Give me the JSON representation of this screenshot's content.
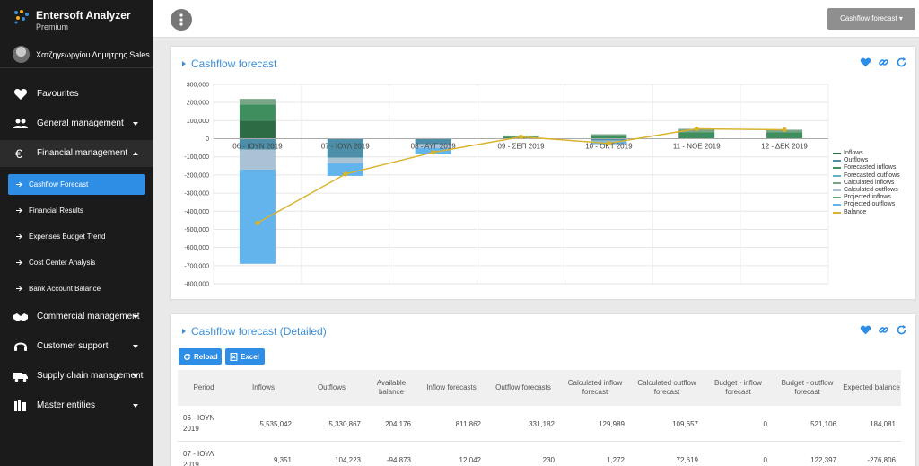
{
  "app": {
    "title": "Entersoft Analyzer",
    "subtitle": "Premium"
  },
  "user": {
    "name": "Χατζηγεωργίου Δημήτρης Sales"
  },
  "nav": {
    "favourites": "Favourites",
    "general": "General management",
    "financial": "Financial management",
    "commercial": "Commercial management",
    "support": "Customer support",
    "supply": "Supply chain management",
    "master": "Master entities",
    "sub": [
      "Cashflow Forecast",
      "Financial Results",
      "Expenses Budget Trend",
      "Cost Center Analysis",
      "Bank Account Balance"
    ]
  },
  "topbar": {
    "button": "Cashflow forecast"
  },
  "panel1": {
    "title": "Cashflow forecast"
  },
  "panel2": {
    "title": "Cashflow forecast (Detailed)",
    "reload": "Reload",
    "excel": "Excel"
  },
  "colors": {
    "accent": "#2e8ee6",
    "inflow": "#3f8f5e",
    "outflow": "#2e8ee6",
    "balance": "#d9b32b"
  },
  "chart_data": {
    "type": "bar",
    "title": "Cashflow forecast",
    "categories": [
      "06 - ΙΟΥΝ 2019",
      "07 - ΙΟΥΛ 2019",
      "08 - ΑΥΓ 2019",
      "09 - ΣΕΠ 2019",
      "10 - ΟΚΤ 2019",
      "11 - ΝΟΕ 2019",
      "12 - ΔΕΚ 2019"
    ],
    "ylim": [
      -800000,
      300000
    ],
    "yticks": [
      "300,000",
      "200,000",
      "100,000",
      "0",
      "-100,000",
      "-200,000",
      "-300,000",
      "-400,000",
      "-500,000",
      "-600,000",
      "-700,000",
      "-800,000"
    ],
    "ytick_values": [
      300000,
      200000,
      100000,
      0,
      -100000,
      -200000,
      -300000,
      -400000,
      -500000,
      -600000,
      -700000,
      -800000
    ],
    "legend": [
      "Inflows",
      "Outflows",
      "Forecasted inflows",
      "Forecasted outflows",
      "Calculated inflows",
      "Calculated outflows",
      "Projected inflows",
      "Projected outflows",
      "Balance"
    ],
    "legend_colors": [
      "#2d6b45",
      "#4d8ea8",
      "#3f8f5e",
      "#5eb2c4",
      "#7aa688",
      "#a9c3d4",
      "#5aa977",
      "#63b3ec",
      "#d9b32b"
    ],
    "series": [
      {
        "name": "Inflows",
        "values": [
          100000,
          0,
          0,
          0,
          0,
          0,
          0
        ]
      },
      {
        "name": "Forecasted inflows",
        "values": [
          90000,
          0,
          0,
          10000,
          15000,
          35000,
          35000
        ]
      },
      {
        "name": "Calculated inflows",
        "values": [
          30000,
          2000,
          3000,
          8000,
          10000,
          20000,
          15000
        ]
      },
      {
        "name": "Outflows",
        "values": [
          -60000,
          -105000,
          -30000,
          0,
          -10000,
          0,
          0
        ]
      },
      {
        "name": "Calculated outflows",
        "values": [
          -110000,
          -30000,
          -20000,
          0,
          -5000,
          0,
          0
        ]
      },
      {
        "name": "Projected outflows",
        "values": [
          -520000,
          -70000,
          -35000,
          0,
          -15000,
          0,
          0
        ]
      }
    ],
    "balance": [
      -465000,
      -195000,
      -75000,
      10000,
      -25000,
      55000,
      50000
    ]
  },
  "table": {
    "headers": [
      "Period",
      "Inflows",
      "Outflows",
      "Available balance",
      "Inflow forecasts",
      "Outflow forecasts",
      "Calculated inflow forecast",
      "Calculated outflow forecast",
      "Budget - inflow forecast",
      "Budget - outflow forecast",
      "Expected balance"
    ],
    "rows": [
      [
        "06 - ΙΟΥΝ 2019",
        "5,535,042",
        "5,330,867",
        "204,176",
        "811,862",
        "331,182",
        "129,989",
        "109,657",
        "0",
        "521,106",
        "184,081"
      ],
      [
        "07 - ΙΟΥΛ 2019",
        "9,351",
        "104,223",
        "-94,873",
        "12,042",
        "230",
        "1,272",
        "72,619",
        "0",
        "122,397",
        "-276,806"
      ]
    ]
  }
}
